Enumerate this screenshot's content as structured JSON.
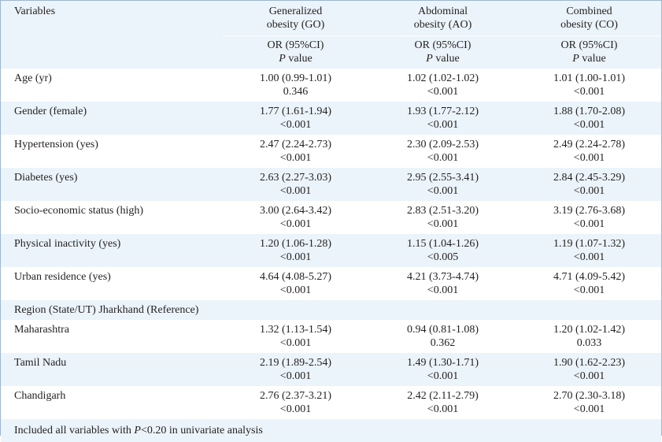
{
  "header": {
    "variables_label": "Variables",
    "go_line1": "Generalized",
    "go_line2": "obesity (GO)",
    "ao_line1": "Abdominal",
    "ao_line2": "obesity (AO)",
    "co_line1": "Combined",
    "co_line2": "obesity (CO)",
    "or_label": "OR (95%CI)",
    "p_italic": "P",
    "p_rest": " value"
  },
  "rows": [
    {
      "label": "Age (yr)",
      "go_or": "1.00 (0.99-1.01)",
      "go_p": "0.346",
      "ao_or": "1.02 (1.02-1.02)",
      "ao_p": "<0.001",
      "co_or": "1.01 (1.00-1.01)",
      "co_p": "<0.001"
    },
    {
      "label": "Gender (female)",
      "go_or": "1.77 (1.61-1.94)",
      "go_p": "<0.001",
      "ao_or": "1.93 (1.77-2.12)",
      "ao_p": "<0.001",
      "co_or": "1.88 (1.70-2.08)",
      "co_p": "<0.001"
    },
    {
      "label": "Hypertension (yes)",
      "go_or": "2.47 (2.24-2.73)",
      "go_p": "<0.001",
      "ao_or": "2.30 (2.09-2.53)",
      "ao_p": "<0.001",
      "co_or": "2.49 (2.24-2.78)",
      "co_p": "<0.001"
    },
    {
      "label": "Diabetes (yes)",
      "go_or": "2.63 (2.27-3.03)",
      "go_p": "<0.001",
      "ao_or": "2.95 (2.55-3.41)",
      "ao_p": "<0.001",
      "co_or": "2.84 (2.45-3.29)",
      "co_p": "<0.001"
    },
    {
      "label": "Socio-economic status (high)",
      "go_or": "3.00 (2.64-3.42)",
      "go_p": "<0.001",
      "ao_or": "2.83 (2.51-3.20)",
      "ao_p": "<0.001",
      "co_or": "3.19 (2.76-3.68)",
      "co_p": "<0.001"
    },
    {
      "label": "Physical inactivity (yes)",
      "go_or": "1.20 (1.06-1.28)",
      "go_p": "<0.001",
      "ao_or": "1.15 (1.04-1.26)",
      "ao_p": "<0.005",
      "co_or": "1.19 (1.07-1.32)",
      "co_p": "<0.001"
    },
    {
      "label": "Urban residence (yes)",
      "go_or": "4.64 (4.08-5.27)",
      "go_p": "<0.001",
      "ao_or": "4.21 (3.73-4.74)",
      "ao_p": "<0.001",
      "co_or": "4.71 (4.09-5.42)",
      "co_p": "<0.001"
    }
  ],
  "region_label": "Region (State/UT) Jharkhand (Reference)",
  "region_rows": [
    {
      "label": "Maharashtra",
      "go_or": "1.32 (1.13-1.54)",
      "go_p": "<0.001",
      "ao_or": "0.94 (0.81-1.08)",
      "ao_p": "0.362",
      "co_or": "1.20 (1.02-1.42)",
      "co_p": "0.033"
    },
    {
      "label": "Tamil Nadu",
      "go_or": "2.19 (1.89-2.54)",
      "go_p": "<0.001",
      "ao_or": "1.49 (1.30-1.71)",
      "ao_p": "<0.001",
      "co_or": "1.90 (1.62-2.23)",
      "co_p": "<0.001"
    },
    {
      "label": "Chandigarh",
      "go_or": "2.76 (2.37-3.21)",
      "go_p": "<0.001",
      "ao_or": "2.42 (2.11-2.79)",
      "ao_p": "<0.001",
      "co_or": "2.70 (2.30-3.18)",
      "co_p": "<0.001"
    }
  ],
  "footnote": {
    "prefix": "Included all variables with ",
    "p_italic": "P",
    "suffix": "<0.20 in univariate analysis"
  },
  "colors": {
    "tint": "#ebf4fb",
    "border": "#9fb7cc",
    "text": "#231f20"
  }
}
